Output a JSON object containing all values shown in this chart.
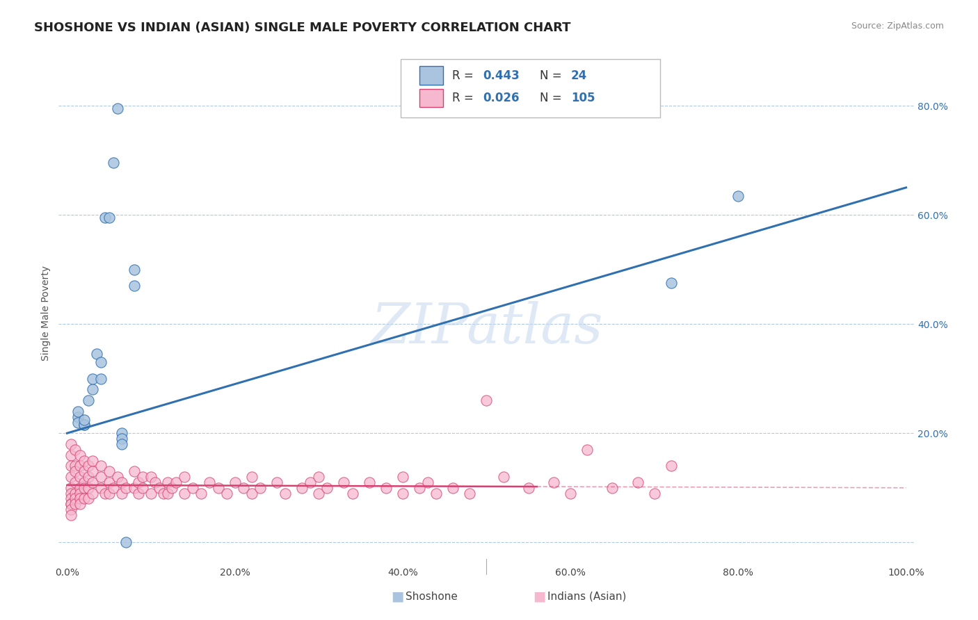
{
  "title": "SHOSHONE VS INDIAN (ASIAN) SINGLE MALE POVERTY CORRELATION CHART",
  "source": "Source: ZipAtlas.com",
  "ylabel": "Single Male Poverty",
  "xlabel": "",
  "xlim": [
    -0.01,
    1.01
  ],
  "ylim": [
    -0.04,
    0.88
  ],
  "watermark": "ZIPatlas",
  "shoshone_R": 0.443,
  "shoshone_N": 24,
  "indian_R": 0.026,
  "indian_N": 105,
  "shoshone_color": "#aac4df",
  "indian_color": "#f5b8ce",
  "shoshone_line_color": "#3070b0",
  "indian_line_color": "#d84070",
  "background_color": "#ffffff",
  "grid_color": "#b0c8e0",
  "ytick_color": "#3070b0",
  "shoshone_x": [
    0.013,
    0.013,
    0.013,
    0.02,
    0.02,
    0.02,
    0.025,
    0.03,
    0.03,
    0.035,
    0.04,
    0.04,
    0.045,
    0.05,
    0.055,
    0.06,
    0.065,
    0.065,
    0.065,
    0.07,
    0.08,
    0.08,
    0.72,
    0.8
  ],
  "shoshone_y": [
    0.23,
    0.24,
    0.22,
    0.215,
    0.215,
    0.225,
    0.26,
    0.28,
    0.3,
    0.345,
    0.3,
    0.33,
    0.595,
    0.595,
    0.695,
    0.795,
    0.2,
    0.19,
    0.18,
    0.0,
    0.5,
    0.47,
    0.475,
    0.635
  ],
  "indian_x": [
    0.005,
    0.005,
    0.005,
    0.005,
    0.005,
    0.005,
    0.005,
    0.005,
    0.005,
    0.005,
    0.005,
    0.01,
    0.01,
    0.01,
    0.01,
    0.01,
    0.01,
    0.01,
    0.015,
    0.015,
    0.015,
    0.015,
    0.015,
    0.015,
    0.015,
    0.02,
    0.02,
    0.02,
    0.02,
    0.02,
    0.025,
    0.025,
    0.025,
    0.025,
    0.03,
    0.03,
    0.03,
    0.03,
    0.04,
    0.04,
    0.04,
    0.045,
    0.05,
    0.05,
    0.05,
    0.055,
    0.06,
    0.065,
    0.065,
    0.07,
    0.08,
    0.08,
    0.085,
    0.085,
    0.09,
    0.09,
    0.1,
    0.1,
    0.105,
    0.11,
    0.115,
    0.12,
    0.12,
    0.125,
    0.13,
    0.14,
    0.14,
    0.15,
    0.16,
    0.17,
    0.18,
    0.19,
    0.2,
    0.21,
    0.22,
    0.22,
    0.23,
    0.25,
    0.26,
    0.28,
    0.29,
    0.3,
    0.3,
    0.31,
    0.33,
    0.34,
    0.36,
    0.38,
    0.4,
    0.4,
    0.42,
    0.43,
    0.44,
    0.46,
    0.48,
    0.5,
    0.52,
    0.55,
    0.58,
    0.6,
    0.62,
    0.65,
    0.68,
    0.7,
    0.72
  ],
  "indian_y": [
    0.18,
    0.16,
    0.14,
    0.12,
    0.1,
    0.09,
    0.08,
    0.07,
    0.07,
    0.06,
    0.05,
    0.17,
    0.14,
    0.13,
    0.11,
    0.09,
    0.08,
    0.07,
    0.16,
    0.14,
    0.12,
    0.1,
    0.09,
    0.08,
    0.07,
    0.15,
    0.13,
    0.11,
    0.1,
    0.08,
    0.14,
    0.12,
    0.1,
    0.08,
    0.15,
    0.13,
    0.11,
    0.09,
    0.14,
    0.12,
    0.1,
    0.09,
    0.13,
    0.11,
    0.09,
    0.1,
    0.12,
    0.11,
    0.09,
    0.1,
    0.13,
    0.1,
    0.11,
    0.09,
    0.12,
    0.1,
    0.12,
    0.09,
    0.11,
    0.1,
    0.09,
    0.11,
    0.09,
    0.1,
    0.11,
    0.09,
    0.12,
    0.1,
    0.09,
    0.11,
    0.1,
    0.09,
    0.11,
    0.1,
    0.12,
    0.09,
    0.1,
    0.11,
    0.09,
    0.1,
    0.11,
    0.12,
    0.09,
    0.1,
    0.11,
    0.09,
    0.11,
    0.1,
    0.12,
    0.09,
    0.1,
    0.11,
    0.09,
    0.1,
    0.09,
    0.26,
    0.12,
    0.1,
    0.11,
    0.09,
    0.17,
    0.1,
    0.11,
    0.09,
    0.14
  ]
}
